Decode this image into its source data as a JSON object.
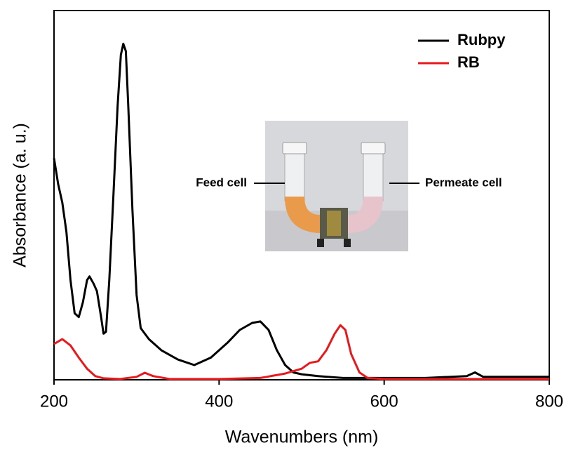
{
  "chart_data": {
    "type": "line",
    "xlabel": "Wavenumbers (nm)",
    "ylabel": "Absorbance (a. u.)",
    "xlim": [
      200,
      800
    ],
    "xticks": [
      200,
      400,
      600,
      800
    ],
    "ylim": [
      0,
      100
    ],
    "legend": "upper right",
    "annotations": [
      "Feed cell",
      "Permeate cell"
    ],
    "series": [
      {
        "name": "Rubpy",
        "color": "#000000",
        "x": [
          200,
          205,
          210,
          215,
          220,
          225,
          230,
          235,
          240,
          243,
          248,
          252,
          257,
          260,
          263,
          267,
          272,
          277,
          281,
          284,
          287,
          290,
          295,
          300,
          305,
          315,
          330,
          350,
          370,
          390,
          410,
          425,
          440,
          450,
          460,
          470,
          480,
          490,
          500,
          520,
          550,
          600,
          650,
          700,
          710,
          720,
          800
        ],
        "values": [
          60,
          53,
          48,
          40,
          27,
          18,
          17,
          21,
          27,
          28,
          26,
          24,
          17,
          12.5,
          13,
          27,
          50,
          74,
          88,
          91,
          89,
          74,
          46,
          23,
          14,
          11,
          8,
          5.5,
          4,
          6,
          10,
          13.5,
          15.4,
          15.8,
          13.5,
          8,
          4,
          2,
          1.5,
          1,
          0.5,
          0.5,
          0.5,
          1,
          2,
          0.8,
          0.8
        ]
      },
      {
        "name": "RB",
        "color": "#e8191c",
        "x": [
          200,
          210,
          220,
          230,
          240,
          250,
          260,
          280,
          300,
          310,
          320,
          340,
          400,
          450,
          480,
          500,
          510,
          520,
          530,
          540,
          547,
          553,
          560,
          570,
          580,
          600,
          800
        ],
        "values": [
          9.7,
          11,
          9.3,
          6,
          3,
          1,
          0.4,
          0.2,
          0.8,
          1.9,
          1,
          0.2,
          0.2,
          0.5,
          1.7,
          3,
          4.6,
          5,
          8,
          12.5,
          14.8,
          13.5,
          7,
          2,
          0.5,
          0.2,
          0.2
        ]
      }
    ]
  }
}
